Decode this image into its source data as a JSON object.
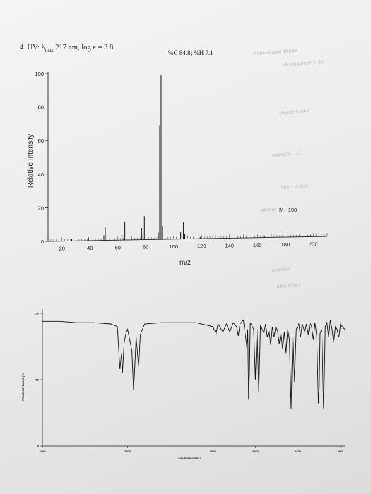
{
  "header": {
    "uv_prefix": "4.  UV: λ",
    "uv_sub": "max",
    "uv_suffix": " 217 nm, log e = 3.8",
    "composition": "%C 84.8; %H 7.1"
  },
  "chart_data": [
    {
      "type": "bar",
      "title": "",
      "xlabel": "m/z",
      "ylabel": "Relative Intensity",
      "xlim": [
        10,
        210
      ],
      "ylim": [
        0,
        100
      ],
      "xticks": [
        20,
        40,
        60,
        80,
        100,
        120,
        140,
        160,
        180,
        200
      ],
      "yticks": [
        0,
        20,
        40,
        60,
        80,
        100
      ],
      "annotation": "M+ 198",
      "peaks": [
        {
          "mz": 27,
          "value": 1
        },
        {
          "mz": 39,
          "value": 2
        },
        {
          "mz": 50,
          "value": 3
        },
        {
          "mz": 51,
          "value": 8
        },
        {
          "mz": 63,
          "value": 3
        },
        {
          "mz": 65,
          "value": 11
        },
        {
          "mz": 77,
          "value": 7
        },
        {
          "mz": 78,
          "value": 3
        },
        {
          "mz": 79,
          "value": 14
        },
        {
          "mz": 89,
          "value": 4
        },
        {
          "mz": 90,
          "value": 68
        },
        {
          "mz": 91,
          "value": 98
        },
        {
          "mz": 92,
          "value": 8
        },
        {
          "mz": 105,
          "value": 4
        },
        {
          "mz": 107,
          "value": 10
        },
        {
          "mz": 108,
          "value": 3
        },
        {
          "mz": 119,
          "value": 1
        },
        {
          "mz": 165,
          "value": 1
        },
        {
          "mz": 198,
          "value": 1
        }
      ]
    },
    {
      "type": "line",
      "title": "",
      "xlabel": "WAVENUMBER⁻¹",
      "ylabel": "TRANSMITTANCE[%]",
      "xlim": [
        4000,
        450
      ],
      "ylim": [
        0,
        100
      ],
      "x_reversed": true,
      "xticks": [
        4000,
        3000,
        2000,
        1500,
        1000,
        500
      ],
      "xtick_labels": [
        "4000",
        "3000",
        "2000",
        "1500",
        "1000",
        "500"
      ],
      "yticks": [
        0,
        50,
        100
      ],
      "ytick_labels": [
        "0",
        "50",
        "100"
      ],
      "points": [
        [
          4000,
          94
        ],
        [
          3800,
          94
        ],
        [
          3600,
          93
        ],
        [
          3400,
          93
        ],
        [
          3200,
          92
        ],
        [
          3120,
          90
        ],
        [
          3090,
          58
        ],
        [
          3070,
          70
        ],
        [
          3060,
          55
        ],
        [
          3040,
          78
        ],
        [
          3020,
          85
        ],
        [
          3000,
          88
        ],
        [
          2950,
          72
        ],
        [
          2930,
          42
        ],
        [
          2915,
          60
        ],
        [
          2900,
          82
        ],
        [
          2870,
          60
        ],
        [
          2850,
          84
        ],
        [
          2800,
          92
        ],
        [
          2600,
          93
        ],
        [
          2400,
          93
        ],
        [
          2200,
          93
        ],
        [
          2000,
          90
        ],
        [
          1960,
          85
        ],
        [
          1940,
          92
        ],
        [
          1900,
          88
        ],
        [
          1880,
          86
        ],
        [
          1840,
          92
        ],
        [
          1800,
          86
        ],
        [
          1760,
          93
        ],
        [
          1720,
          90
        ],
        [
          1700,
          83
        ],
        [
          1680,
          92
        ],
        [
          1640,
          95
        ],
        [
          1610,
          80
        ],
        [
          1600,
          74
        ],
        [
          1590,
          88
        ],
        [
          1580,
          35
        ],
        [
          1570,
          55
        ],
        [
          1560,
          93
        ],
        [
          1520,
          88
        ],
        [
          1500,
          50
        ],
        [
          1490,
          70
        ],
        [
          1480,
          88
        ],
        [
          1460,
          40
        ],
        [
          1450,
          65
        ],
        [
          1440,
          91
        ],
        [
          1420,
          88
        ],
        [
          1400,
          85
        ],
        [
          1380,
          92
        ],
        [
          1360,
          82
        ],
        [
          1340,
          87
        ],
        [
          1320,
          76
        ],
        [
          1300,
          90
        ],
        [
          1280,
          82
        ],
        [
          1260,
          90
        ],
        [
          1240,
          87
        ],
        [
          1220,
          77
        ],
        [
          1200,
          85
        ],
        [
          1180,
          73
        ],
        [
          1160,
          86
        ],
        [
          1140,
          70
        ],
        [
          1130,
          80
        ],
        [
          1120,
          88
        ],
        [
          1100,
          80
        ],
        [
          1080,
          28
        ],
        [
          1070,
          60
        ],
        [
          1060,
          84
        ],
        [
          1040,
          48
        ],
        [
          1030,
          70
        ],
        [
          1020,
          88
        ],
        [
          990,
          92
        ],
        [
          970,
          82
        ],
        [
          950,
          92
        ],
        [
          920,
          86
        ],
        [
          900,
          92
        ],
        [
          880,
          84
        ],
        [
          860,
          93
        ],
        [
          840,
          90
        ],
        [
          820,
          80
        ],
        [
          800,
          93
        ],
        [
          780,
          83
        ],
        [
          760,
          32
        ],
        [
          750,
          45
        ],
        [
          740,
          85
        ],
        [
          720,
          88
        ],
        [
          700,
          28
        ],
        [
          690,
          55
        ],
        [
          680,
          90
        ],
        [
          660,
          93
        ],
        [
          640,
          82
        ],
        [
          620,
          95
        ],
        [
          600,
          88
        ],
        [
          580,
          78
        ],
        [
          560,
          90
        ],
        [
          540,
          88
        ],
        [
          520,
          82
        ],
        [
          500,
          92
        ],
        [
          480,
          90
        ],
        [
          450,
          88
        ]
      ]
    }
  ],
  "ghost_notes": [
    "f-substituted alkene",
    "alkyl/aromatic C-H",
    "alkyl benzene",
    "aromatic C-C",
    "mono-subst.",
    "alkene",
    "aromatic",
    "alkyl chain"
  ]
}
